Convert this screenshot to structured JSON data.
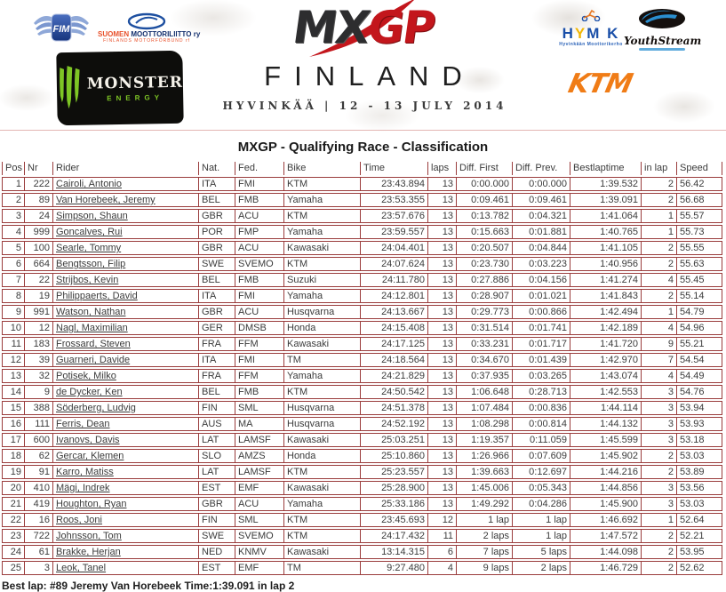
{
  "header": {
    "fim_label": "FIM",
    "sml_line1_left": "SUOMEN",
    "sml_line1_right": " MOOTTORILIITTO ry",
    "sml_line2": "FINLANDS MOTORFÖRBUND rf",
    "monster_word": "MONSTER",
    "monster_sub": "ENERGY",
    "mxgp_mx": "MX",
    "mxgp_gp": "GP",
    "event_country": "FINLAND",
    "event_venue_date": "HYVINKÄÄ | 12 - 13 JULY 2014",
    "hymk_h": "H",
    "hymk_y": "Y",
    "hymk_mk": "M K",
    "hymk_sub": "Hyvinkään Moottorikerho",
    "youthstream": "YouthStream",
    "ktm": "KTM"
  },
  "title": "MXGP - Qualifying Race - Classification",
  "table": {
    "columns": [
      "Pos",
      "Nr",
      "Rider",
      "Nat.",
      "Fed.",
      "Bike",
      "Time",
      "laps",
      "Diff. First",
      "Diff. Prev.",
      "Bestlaptime",
      "in lap",
      "Speed"
    ],
    "column_keys": [
      "pos",
      "nr",
      "rider",
      "nat",
      "fed",
      "bike",
      "time",
      "laps",
      "diff-first",
      "diff-prev",
      "bestlaptime",
      "in-lap",
      "speed"
    ],
    "rows": [
      [
        "1",
        "222",
        "Cairoli, Antonio",
        "ITA",
        "FMI",
        "KTM",
        "23:43.894",
        "13",
        "0:00.000",
        "0:00.000",
        "1:39.532",
        "2",
        "56.42"
      ],
      [
        "2",
        "89",
        "Van Horebeek, Jeremy",
        "BEL",
        "FMB",
        "Yamaha",
        "23:53.355",
        "13",
        "0:09.461",
        "0:09.461",
        "1:39.091",
        "2",
        "56.68"
      ],
      [
        "3",
        "24",
        "Simpson, Shaun",
        "GBR",
        "ACU",
        "KTM",
        "23:57.676",
        "13",
        "0:13.782",
        "0:04.321",
        "1:41.064",
        "1",
        "55.57"
      ],
      [
        "4",
        "999",
        "Goncalves, Rui",
        "POR",
        "FMP",
        "Yamaha",
        "23:59.557",
        "13",
        "0:15.663",
        "0:01.881",
        "1:40.765",
        "1",
        "55.73"
      ],
      [
        "5",
        "100",
        "Searle, Tommy",
        "GBR",
        "ACU",
        "Kawasaki",
        "24:04.401",
        "13",
        "0:20.507",
        "0:04.844",
        "1:41.105",
        "2",
        "55.55"
      ],
      [
        "6",
        "664",
        "Bengtsson, Filip",
        "SWE",
        "SVEMO",
        "KTM",
        "24:07.624",
        "13",
        "0:23.730",
        "0:03.223",
        "1:40.956",
        "2",
        "55.63"
      ],
      [
        "7",
        "22",
        "Strijbos, Kevin",
        "BEL",
        "FMB",
        "Suzuki",
        "24:11.780",
        "13",
        "0:27.886",
        "0:04.156",
        "1:41.274",
        "4",
        "55.45"
      ],
      [
        "8",
        "19",
        "Philippaerts, David",
        "ITA",
        "FMI",
        "Yamaha",
        "24:12.801",
        "13",
        "0:28.907",
        "0:01.021",
        "1:41.843",
        "2",
        "55.14"
      ],
      [
        "9",
        "991",
        "Watson, Nathan",
        "GBR",
        "ACU",
        "Husqvarna",
        "24:13.667",
        "13",
        "0:29.773",
        "0:00.866",
        "1:42.494",
        "1",
        "54.79"
      ],
      [
        "10",
        "12",
        "Nagl, Maximilian",
        "GER",
        "DMSB",
        "Honda",
        "24:15.408",
        "13",
        "0:31.514",
        "0:01.741",
        "1:42.189",
        "4",
        "54.96"
      ],
      [
        "11",
        "183",
        "Frossard, Steven",
        "FRA",
        "FFM",
        "Kawasaki",
        "24:17.125",
        "13",
        "0:33.231",
        "0:01.717",
        "1:41.720",
        "9",
        "55.21"
      ],
      [
        "12",
        "39",
        "Guarneri, Davide",
        "ITA",
        "FMI",
        "TM",
        "24:18.564",
        "13",
        "0:34.670",
        "0:01.439",
        "1:42.970",
        "7",
        "54.54"
      ],
      [
        "13",
        "32",
        "Potisek, Milko",
        "FRA",
        "FFM",
        "Yamaha",
        "24:21.829",
        "13",
        "0:37.935",
        "0:03.265",
        "1:43.074",
        "4",
        "54.49"
      ],
      [
        "14",
        "9",
        "de Dycker, Ken",
        "BEL",
        "FMB",
        "KTM",
        "24:50.542",
        "13",
        "1:06.648",
        "0:28.713",
        "1:42.553",
        "3",
        "54.76"
      ],
      [
        "15",
        "388",
        "Söderberg, Ludvig",
        "FIN",
        "SML",
        "Husqvarna",
        "24:51.378",
        "13",
        "1:07.484",
        "0:00.836",
        "1:44.114",
        "3",
        "53.94"
      ],
      [
        "16",
        "111",
        "Ferris, Dean",
        "AUS",
        "MA",
        "Husqvarna",
        "24:52.192",
        "13",
        "1:08.298",
        "0:00.814",
        "1:44.132",
        "3",
        "53.93"
      ],
      [
        "17",
        "600",
        "Ivanovs, Davis",
        "LAT",
        "LAMSF",
        "Kawasaki",
        "25:03.251",
        "13",
        "1:19.357",
        "0:11.059",
        "1:45.599",
        "3",
        "53.18"
      ],
      [
        "18",
        "62",
        "Gercar, Klemen",
        "SLO",
        "AMZS",
        "Honda",
        "25:10.860",
        "13",
        "1:26.966",
        "0:07.609",
        "1:45.902",
        "2",
        "53.03"
      ],
      [
        "19",
        "91",
        "Karro, Matiss",
        "LAT",
        "LAMSF",
        "KTM",
        "25:23.557",
        "13",
        "1:39.663",
        "0:12.697",
        "1:44.216",
        "2",
        "53.89"
      ],
      [
        "20",
        "410",
        "Mägi, Indrek",
        "EST",
        "EMF",
        "Kawasaki",
        "25:28.900",
        "13",
        "1:45.006",
        "0:05.343",
        "1:44.856",
        "3",
        "53.56"
      ],
      [
        "21",
        "419",
        "Houghton, Ryan",
        "GBR",
        "ACU",
        "Yamaha",
        "25:33.186",
        "13",
        "1:49.292",
        "0:04.286",
        "1:45.900",
        "3",
        "53.03"
      ],
      [
        "22",
        "16",
        "Roos, Joni",
        "FIN",
        "SML",
        "KTM",
        "23:45.693",
        "12",
        "1 lap",
        "1 lap",
        "1:46.692",
        "1",
        "52.64"
      ],
      [
        "23",
        "722",
        "Johnsson, Tom",
        "SWE",
        "SVEMO",
        "KTM",
        "24:17.432",
        "11",
        "2 laps",
        "1 lap",
        "1:47.572",
        "2",
        "52.21"
      ],
      [
        "24",
        "61",
        "Brakke, Herjan",
        "NED",
        "KNMV",
        "Kawasaki",
        "13:14.315",
        "6",
        "7 laps",
        "5 laps",
        "1:44.098",
        "2",
        "53.95"
      ],
      [
        "25",
        "3",
        "Leok, Tanel",
        "EST",
        "EMF",
        "TM",
        "9:27.480",
        "4",
        "9 laps",
        "2 laps",
        "1:46.729",
        "2",
        "52.62"
      ]
    ]
  },
  "footer": {
    "best_lap": "Best lap: #89 Jeremy Van Horebeek Time:1:39.091 in lap 2"
  },
  "colors": {
    "table_border": "#9a3c3c",
    "mxgp_red": "#c3161c",
    "ktm_orange": "#f07c16",
    "federation_blue": "#1a4fa8",
    "monster_green": "#7ec625"
  }
}
